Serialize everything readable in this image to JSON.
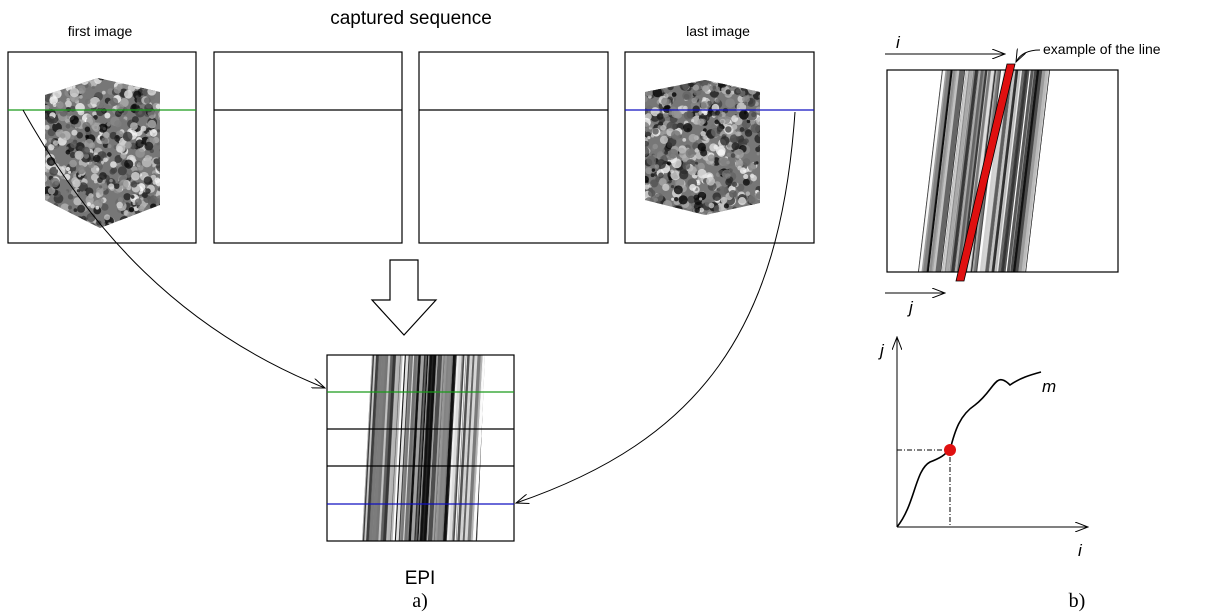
{
  "sequence": {
    "title": "captured sequence",
    "first_label": "first image",
    "last_label": "last image"
  },
  "epi": {
    "label": "EPI",
    "caption": "a)"
  },
  "detail": {
    "line_label": "example of the line",
    "axis_i": "i",
    "axis_j": "j"
  },
  "plot": {
    "y_axis": "j",
    "x_axis": "i",
    "curve": "m",
    "caption": "b)"
  }
}
